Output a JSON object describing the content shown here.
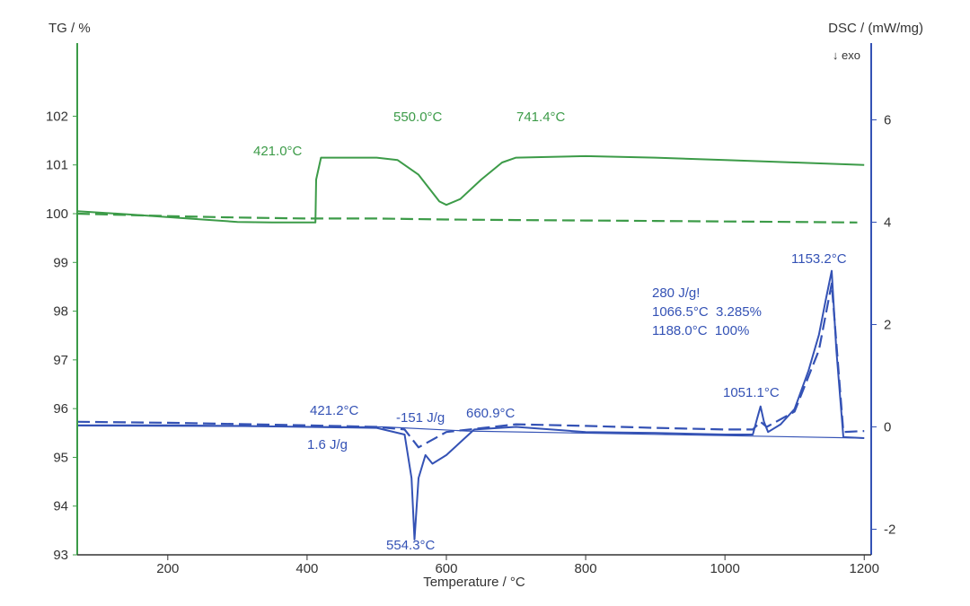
{
  "chart_data": {
    "type": "line",
    "xlabel": "Temperature / °C",
    "ylabel_left": "TG / %",
    "ylabel_right": "DSC / (mW/mg)",
    "exo_marker": "↓ exo",
    "xlim": [
      70,
      1210
    ],
    "ylim_left": [
      93,
      103.5
    ],
    "ylim_right": [
      -2.5,
      7.5
    ],
    "xticks": [
      "200",
      "400",
      "600",
      "800",
      "1000",
      "1200"
    ],
    "yticks_left": [
      "93",
      "94",
      "95",
      "96",
      "97",
      "98",
      "99",
      "100",
      "101",
      "102"
    ],
    "yticks_right": [
      "-2",
      "0",
      "2",
      "4",
      "6"
    ],
    "grid": false,
    "colors": {
      "tg": "#3c9b48",
      "dsc": "#3452b5",
      "axis_left": "#3c9b48",
      "axis_right": "#3452b5",
      "axis_bottom": "#333333"
    },
    "series": [
      {
        "axis": "left",
        "color": "#3c9b48",
        "dashed": false,
        "x": [
          70,
          150,
          250,
          300,
          350,
          412,
          413,
          420,
          500,
          530,
          560,
          590,
          600,
          620,
          650,
          680,
          700,
          800,
          900,
          1000,
          1100,
          1200
        ],
        "y": [
          100.05,
          99.98,
          99.88,
          99.83,
          99.82,
          99.82,
          100.7,
          101.15,
          101.15,
          101.1,
          100.8,
          100.25,
          100.18,
          100.3,
          100.7,
          101.05,
          101.15,
          101.18,
          101.15,
          101.1,
          101.05,
          101.0
        ]
      },
      {
        "axis": "left",
        "color": "#3c9b48",
        "dashed": true,
        "x": [
          70,
          200,
          300,
          400,
          500,
          600,
          700,
          800,
          900,
          1000,
          1100,
          1190
        ],
        "y": [
          100.0,
          99.95,
          99.92,
          99.9,
          99.9,
          99.88,
          99.87,
          99.86,
          99.85,
          99.84,
          99.83,
          99.82
        ]
      },
      {
        "axis": "right",
        "color": "#3452b5",
        "dashed": false,
        "x": [
          70,
          200,
          300,
          400,
          500,
          540,
          550,
          554.3,
          560,
          570,
          580,
          600,
          640,
          700,
          800,
          900,
          1000,
          1040,
          1046,
          1051.1,
          1056,
          1062,
          1080,
          1100,
          1120,
          1135,
          1145,
          1153.2,
          1160,
          1170,
          1200
        ],
        "y": [
          0.03,
          0.03,
          0.02,
          0.0,
          -0.02,
          -0.15,
          -1.0,
          -2.2,
          -1.0,
          -0.55,
          -0.72,
          -0.55,
          -0.05,
          0.0,
          -0.1,
          -0.12,
          -0.15,
          -0.15,
          0.15,
          0.4,
          0.1,
          -0.1,
          0.05,
          0.35,
          1.1,
          1.8,
          2.5,
          3.05,
          1.5,
          -0.2,
          -0.22
        ]
      },
      {
        "axis": "right",
        "color": "#3452b5",
        "dashed": true,
        "x": [
          70,
          200,
          400,
          500,
          540,
          560,
          600,
          700,
          800,
          900,
          1000,
          1040,
          1051.1,
          1060,
          1100,
          1135,
          1153.2,
          1170,
          1200
        ],
        "y": [
          0.1,
          0.08,
          0.03,
          0.0,
          -0.05,
          -0.4,
          -0.1,
          0.05,
          0.02,
          -0.02,
          -0.05,
          -0.05,
          0.1,
          0.0,
          0.3,
          1.5,
          2.8,
          -0.1,
          -0.08
        ]
      },
      {
        "axis": "right",
        "color": "#3452b5",
        "dashed": false,
        "x": [
          70,
          510,
          630,
          1200
        ],
        "y": [
          0.02,
          0.0,
          -0.08,
          -0.22
        ]
      }
    ],
    "annotations": [
      {
        "text": "421.0°C",
        "color": "tg"
      },
      {
        "text": "550.0°C",
        "color": "tg"
      },
      {
        "text": "741.4°C",
        "color": "tg"
      },
      {
        "text": "421.2°C",
        "color": "dsc"
      },
      {
        "text": "1.6 J/g",
        "color": "dsc"
      },
      {
        "text": "-151 J/g",
        "color": "dsc"
      },
      {
        "text": "660.9°C",
        "color": "dsc"
      },
      {
        "text": "554.3°C",
        "color": "dsc"
      },
      {
        "text": "1051.1°C",
        "color": "dsc"
      },
      {
        "text": "1153.2°C",
        "color": "dsc"
      },
      {
        "text": "280 J/g!",
        "color": "dsc"
      },
      {
        "text": "1066.5°C  3.285%",
        "color": "dsc"
      },
      {
        "text": "1188.0°C  100%",
        "color": "dsc"
      }
    ]
  }
}
